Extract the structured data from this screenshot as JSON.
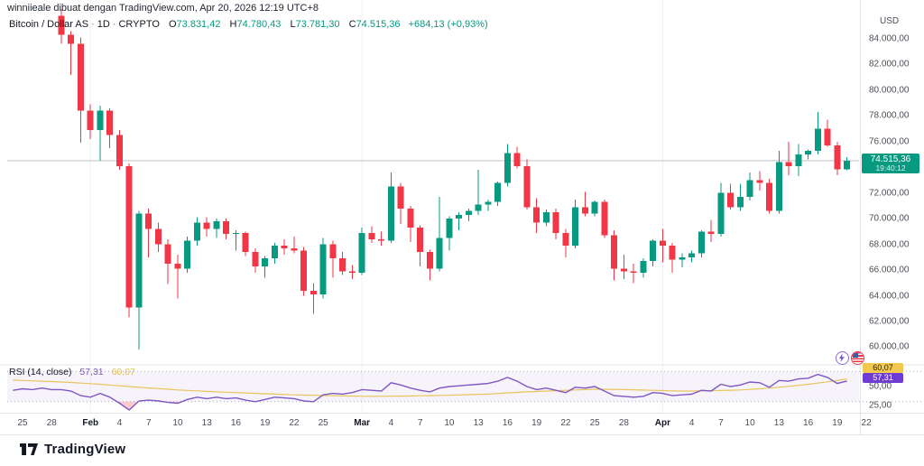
{
  "header": {
    "attribution": "winniieale dibuat dengan TradingView.com, Apr 20, 2026 12:19 UTC+8"
  },
  "symbol": {
    "name": "Bitcoin / Dollar AS",
    "interval": "1D",
    "exchange": "CRYPTO",
    "o_label": "O",
    "o_value": "73.831,42",
    "h_label": "H",
    "h_value": "74.780,43",
    "l_label": "L",
    "l_value": "73.781,30",
    "c_label": "C",
    "c_value": "74.515,36",
    "change": "+684,13 (+0,93%)"
  },
  "price_axis": {
    "currency": "USD",
    "ticks": [
      {
        "label": "84.000,00",
        "value": 84000
      },
      {
        "label": "82.000,00",
        "value": 82000
      },
      {
        "label": "80.000,00",
        "value": 80000
      },
      {
        "label": "78.000,00",
        "value": 78000
      },
      {
        "label": "76.000,00",
        "value": 76000
      },
      {
        "label": "72.000,00",
        "value": 72000
      },
      {
        "label": "70.000,00",
        "value": 70000
      },
      {
        "label": "68.000,00",
        "value": 68000
      },
      {
        "label": "66.000,00",
        "value": 66000
      },
      {
        "label": "64.000,00",
        "value": 64000
      },
      {
        "label": "62.000,00",
        "value": 62000
      },
      {
        "label": "60.000,00",
        "value": 60000
      }
    ],
    "last_price": "74.515,36",
    "countdown": "19:40:12"
  },
  "rsi_pane": {
    "title": "RSI (14, close)",
    "value": "57,31",
    "ma_value": "60,07",
    "ticks": [
      {
        "label": "50,00",
        "value": 50
      },
      {
        "label": "25,00",
        "value": 25
      }
    ],
    "upper_band": 70,
    "lower_band": 30
  },
  "time_axis": {
    "ticks": [
      {
        "label": "25",
        "day": -4
      },
      {
        "label": "28",
        "day": -1
      },
      {
        "label": "Feb",
        "day": 3,
        "month": true
      },
      {
        "label": "4",
        "day": 6
      },
      {
        "label": "7",
        "day": 9
      },
      {
        "label": "10",
        "day": 12
      },
      {
        "label": "13",
        "day": 15
      },
      {
        "label": "16",
        "day": 18
      },
      {
        "label": "19",
        "day": 21
      },
      {
        "label": "22",
        "day": 24
      },
      {
        "label": "25",
        "day": 27
      },
      {
        "label": "Mar",
        "day": 31,
        "month": true
      },
      {
        "label": "4",
        "day": 34
      },
      {
        "label": "7",
        "day": 37
      },
      {
        "label": "10",
        "day": 40
      },
      {
        "label": "13",
        "day": 43
      },
      {
        "label": "16",
        "day": 46
      },
      {
        "label": "19",
        "day": 49
      },
      {
        "label": "22",
        "day": 52
      },
      {
        "label": "25",
        "day": 55
      },
      {
        "label": "28",
        "day": 58
      },
      {
        "label": "Apr",
        "day": 62,
        "month": true
      },
      {
        "label": "4",
        "day": 65
      },
      {
        "label": "7",
        "day": 68
      },
      {
        "label": "10",
        "day": 71
      },
      {
        "label": "13",
        "day": 74
      },
      {
        "label": "16",
        "day": 77
      },
      {
        "label": "19",
        "day": 80
      },
      {
        "label": "22",
        "day": 83
      }
    ]
  },
  "logo": {
    "text": "TradingView"
  },
  "colors": {
    "up": "#089981",
    "down": "#F23645",
    "rsi_line": "#7E57C2",
    "rsi_ma_line": "#E8C45A",
    "rsi_badge_ma_bg": "#F2C94C",
    "rsi_badge_bg": "#6E3BD4",
    "band_fill": "#7E57C2",
    "price_badge_bg": "#089981",
    "axis_text": "#4a4e58",
    "separator": "#E0E3EB"
  },
  "chart_data": {
    "type": "candlestick",
    "title": "Bitcoin / Dollar AS, 1D, CRYPTO",
    "start_date": "2026-01-29",
    "end_date": "2026-04-20",
    "ylim": [
      58500,
      86500
    ],
    "last_close": 74515.36,
    "candles_ohlc": [
      [
        85800,
        86300,
        83600,
        84300
      ],
      [
        84300,
        84600,
        81200,
        83600
      ],
      [
        83600,
        84100,
        75900,
        78400
      ],
      [
        78400,
        78900,
        76200,
        76900
      ],
      [
        76900,
        78800,
        74500,
        78400
      ],
      [
        78400,
        78600,
        75500,
        76500
      ],
      [
        76500,
        76900,
        73800,
        74100
      ],
      [
        74100,
        74300,
        62300,
        63100
      ],
      [
        63100,
        70600,
        59800,
        70400
      ],
      [
        70400,
        70800,
        67000,
        69200
      ],
      [
        69200,
        69700,
        67400,
        68000
      ],
      [
        68000,
        68400,
        64900,
        66500
      ],
      [
        66500,
        67200,
        63800,
        66100
      ],
      [
        66100,
        68600,
        65800,
        68300
      ],
      [
        68300,
        70100,
        67900,
        69700
      ],
      [
        69700,
        70100,
        68600,
        69200
      ],
      [
        69200,
        70000,
        68500,
        69800
      ],
      [
        69800,
        70000,
        68400,
        68800
      ],
      [
        68800,
        69100,
        67500,
        68900
      ],
      [
        68900,
        69000,
        67100,
        67400
      ],
      [
        67400,
        67700,
        65800,
        66300
      ],
      [
        66300,
        67100,
        65400,
        66900
      ],
      [
        66900,
        68100,
        66500,
        67900
      ],
      [
        67900,
        68400,
        67200,
        67700
      ],
      [
        67700,
        68600,
        67300,
        67500
      ],
      [
        67500,
        67800,
        64000,
        64400
      ],
      [
        64400,
        65000,
        62600,
        64100
      ],
      [
        64100,
        68500,
        63800,
        68000
      ],
      [
        68000,
        68300,
        65400,
        66900
      ],
      [
        66900,
        67400,
        65600,
        65900
      ],
      [
        65900,
        66400,
        65300,
        65800
      ],
      [
        65800,
        69300,
        65600,
        68900
      ],
      [
        68900,
        69400,
        68100,
        68400
      ],
      [
        68400,
        69000,
        67900,
        68300
      ],
      [
        68300,
        73600,
        68100,
        72500
      ],
      [
        72500,
        72800,
        69600,
        70800
      ],
      [
        70800,
        71000,
        68200,
        69300
      ],
      [
        69300,
        69500,
        66300,
        67400
      ],
      [
        67400,
        67600,
        65200,
        66100
      ],
      [
        66100,
        71700,
        65900,
        68500
      ],
      [
        68500,
        70200,
        67500,
        70000
      ],
      [
        70000,
        70500,
        69100,
        70300
      ],
      [
        70300,
        70800,
        69800,
        70600
      ],
      [
        70600,
        73800,
        70300,
        71100
      ],
      [
        71100,
        71500,
        70600,
        71300
      ],
      [
        71300,
        72900,
        71000,
        72800
      ],
      [
        72800,
        75800,
        72500,
        75100
      ],
      [
        75100,
        75600,
        73900,
        74100
      ],
      [
        74100,
        74600,
        70700,
        70900
      ],
      [
        70900,
        71600,
        68900,
        69700
      ],
      [
        69700,
        70700,
        69400,
        70500
      ],
      [
        70500,
        70800,
        68400,
        68900
      ],
      [
        68900,
        69200,
        67000,
        67900
      ],
      [
        67900,
        71500,
        67700,
        70900
      ],
      [
        70900,
        72100,
        70200,
        70400
      ],
      [
        70400,
        71400,
        70200,
        71300
      ],
      [
        71300,
        71500,
        68500,
        68700
      ],
      [
        68700,
        69100,
        65200,
        66100
      ],
      [
        66100,
        67200,
        65300,
        65900
      ],
      [
        65900,
        66500,
        65000,
        65800
      ],
      [
        65800,
        66900,
        65400,
        66700
      ],
      [
        66700,
        68400,
        66300,
        68300
      ],
      [
        68300,
        69200,
        66600,
        67900
      ],
      [
        67900,
        68100,
        65800,
        66800
      ],
      [
        66800,
        67300,
        66200,
        67000
      ],
      [
        67000,
        67500,
        66600,
        67300
      ],
      [
        67300,
        69100,
        67000,
        69000
      ],
      [
        69000,
        69900,
        68200,
        68800
      ],
      [
        68800,
        72800,
        68600,
        72000
      ],
      [
        72000,
        72700,
        70700,
        70900
      ],
      [
        70900,
        72700,
        70600,
        71700
      ],
      [
        71700,
        73600,
        71400,
        73000
      ],
      [
        73000,
        73700,
        72200,
        72800
      ],
      [
        72800,
        73100,
        70400,
        70600
      ],
      [
        70600,
        75300,
        70400,
        74400
      ],
      [
        74400,
        76000,
        73400,
        74100
      ],
      [
        74100,
        75800,
        73300,
        75000
      ],
      [
        75000,
        75400,
        74600,
        75300
      ],
      [
        75300,
        78300,
        75000,
        77000
      ],
      [
        77000,
        77700,
        75600,
        75700
      ],
      [
        75700,
        76000,
        73400,
        73831
      ],
      [
        73831,
        74780,
        73781,
        74515.36
      ]
    ],
    "rsi": {
      "name": "RSI (14, close)",
      "last": 57.31,
      "values": [
        46,
        44,
        38,
        36,
        41,
        36,
        28,
        19,
        31,
        32,
        31,
        29,
        28,
        33,
        36,
        34,
        36,
        34,
        35,
        32,
        30,
        33,
        36,
        35,
        34,
        31,
        30,
        39,
        41,
        40,
        42,
        46,
        45,
        44,
        55,
        52,
        48,
        45,
        43,
        48,
        50,
        51,
        52,
        53,
        54,
        57,
        62,
        57,
        50,
        46,
        48,
        45,
        42,
        49,
        48,
        50,
        44,
        38,
        37,
        36,
        37,
        42,
        41,
        38,
        39,
        40,
        45,
        44,
        53,
        50,
        52,
        56,
        55,
        49,
        58,
        57,
        60,
        61,
        66,
        62,
        54,
        57.31
      ],
      "lead_values": [
        45,
        47,
        46,
        48,
        46
      ]
    },
    "rsi_ma": {
      "name": "RSI-based MA",
      "last": 60.07,
      "values": [
        56,
        55.3,
        54.5,
        53.8,
        53,
        52,
        51,
        50,
        49,
        48.1,
        47.3,
        46.4,
        45.5,
        44.9,
        44.3,
        43.6,
        43,
        42.5,
        42,
        41.5,
        41,
        40.5,
        40,
        39.5,
        39,
        38.7,
        38.4,
        38.1,
        37.8,
        37.6,
        37.4,
        37.2,
        37,
        37.1,
        37.3,
        37.4,
        37.5,
        37.8,
        38,
        38.3,
        38.5,
        38.9,
        39.3,
        39.6,
        40,
        40.8,
        41.5,
        42.3,
        43,
        43.5,
        44,
        44.5,
        45,
        45.5,
        46,
        46.5,
        46.3,
        46.2,
        46,
        45.7,
        45.3,
        45,
        44.7,
        44.3,
        44,
        44.1,
        44.2,
        44.5,
        44.8,
        45.1,
        45.5,
        46.2,
        47,
        48,
        49,
        50.2,
        51.5,
        53,
        54.5,
        56.2,
        58,
        60.07
      ],
      "lead_values": [
        58.5,
        58,
        57.5,
        57,
        56.5
      ]
    }
  }
}
